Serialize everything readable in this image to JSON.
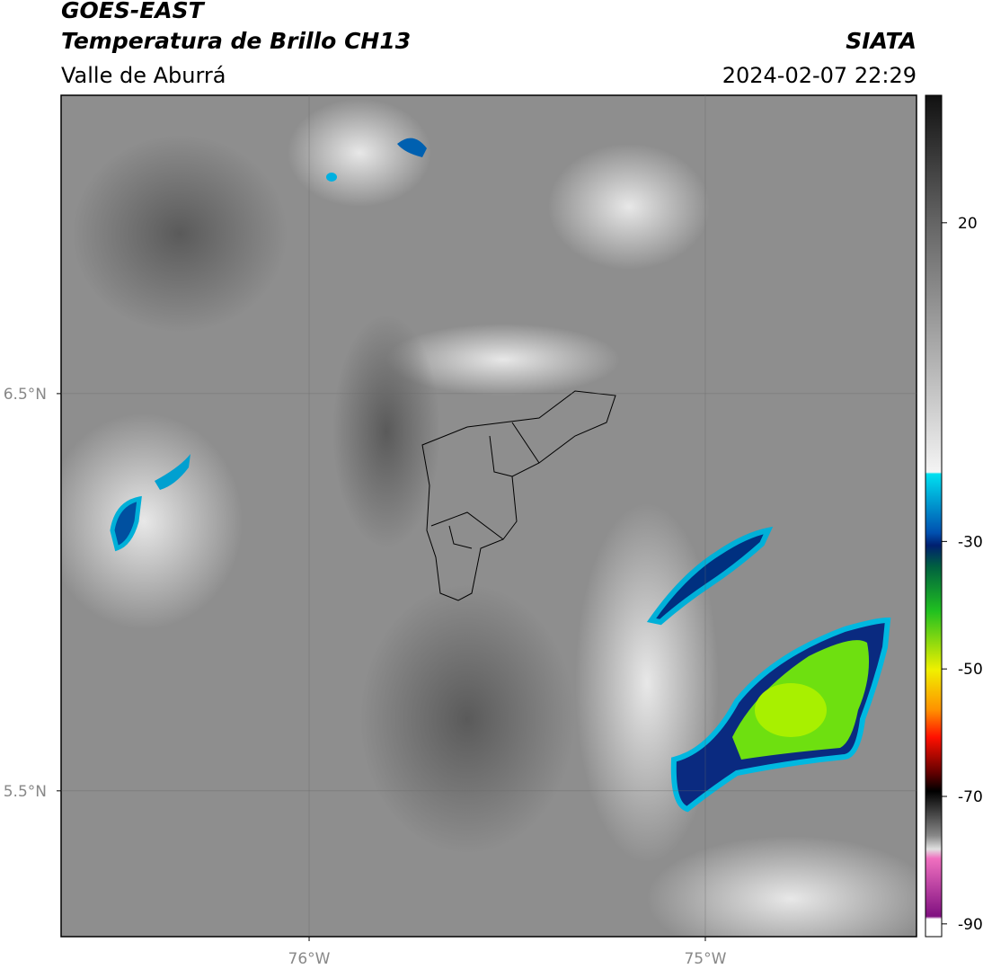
{
  "header": {
    "title": "GOES-EAST",
    "product": "Temperatura de Brillo CH13",
    "region": "Valle de Aburrá",
    "source": "SIATA",
    "datetime": "2024-02-07 22:29"
  },
  "map": {
    "lon_range": [
      -76.626,
      -74.467
    ],
    "lat_range": [
      5.133,
      7.251
    ],
    "lon_ticks": [
      {
        "value": -76,
        "label": "76°W"
      },
      {
        "value": -75,
        "label": "75°W"
      }
    ],
    "lat_ticks": [
      {
        "value": 6.5,
        "label": "6.5°N"
      },
      {
        "value": 5.5,
        "label": "5.5°N"
      }
    ]
  },
  "colorbar": {
    "range": [
      -92,
      40
    ],
    "ticks": [
      20,
      -30,
      -50,
      -70,
      -90
    ]
  }
}
